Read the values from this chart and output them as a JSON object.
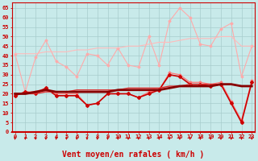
{
  "x": [
    0,
    1,
    2,
    3,
    4,
    5,
    6,
    7,
    8,
    9,
    10,
    11,
    12,
    13,
    14,
    15,
    16,
    17,
    18,
    19,
    20,
    21,
    22,
    23
  ],
  "series": [
    {
      "name": "line1_light_marker",
      "color": "#ffaaaa",
      "linewidth": 0.8,
      "marker": "D",
      "markersize": 1.5,
      "y": [
        41,
        21,
        39,
        48,
        37,
        34,
        29,
        41,
        40,
        35,
        44,
        35,
        34,
        50,
        35,
        58,
        65,
        60,
        46,
        45,
        54,
        57,
        29,
        45
      ]
    },
    {
      "name": "line2_light_trend",
      "color": "#ffbbbb",
      "linewidth": 0.8,
      "marker": null,
      "markersize": 0,
      "y": [
        41,
        41,
        41,
        42,
        42,
        42,
        43,
        43,
        44,
        44,
        44,
        45,
        45,
        46,
        47,
        47,
        48,
        49,
        49,
        49,
        50,
        50,
        45,
        45
      ]
    },
    {
      "name": "line3_medium_marker",
      "color": "#ff7777",
      "linewidth": 0.9,
      "marker": "D",
      "markersize": 1.5,
      "y": [
        19,
        21,
        21,
        23,
        20,
        20,
        20,
        14,
        15,
        20,
        20,
        20,
        18,
        21,
        22,
        31,
        30,
        26,
        26,
        25,
        26,
        16,
        6,
        27
      ]
    },
    {
      "name": "line4_medium_trend",
      "color": "#ffaaaa",
      "linewidth": 0.8,
      "marker": null,
      "markersize": 0,
      "y": [
        20,
        20,
        21,
        21,
        21,
        21,
        21,
        21,
        21,
        21,
        22,
        22,
        22,
        22,
        23,
        23,
        24,
        24,
        24,
        24,
        25,
        25,
        24,
        24
      ]
    },
    {
      "name": "line5_dark_marker",
      "color": "#cc0000",
      "linewidth": 1.2,
      "marker": "D",
      "markersize": 2.0,
      "y": [
        19,
        21,
        20,
        23,
        19,
        19,
        19,
        14,
        15,
        20,
        20,
        20,
        18,
        20,
        22,
        30,
        29,
        25,
        25,
        24,
        25,
        15,
        5,
        26
      ]
    },
    {
      "name": "line6_dark_trend",
      "color": "#dd3333",
      "linewidth": 1.0,
      "marker": null,
      "markersize": 0,
      "y": [
        20,
        20,
        20,
        21,
        21,
        21,
        22,
        22,
        22,
        22,
        22,
        23,
        23,
        23,
        23,
        24,
        24,
        25,
        25,
        25,
        25,
        25,
        24,
        24
      ]
    },
    {
      "name": "line7_bold",
      "color": "#880000",
      "linewidth": 2.0,
      "marker": null,
      "markersize": 0,
      "y": [
        20,
        20,
        21,
        22,
        21,
        21,
        21,
        21,
        21,
        21,
        22,
        22,
        22,
        22,
        22,
        23,
        24,
        24,
        24,
        24,
        25,
        25,
        24,
        24
      ]
    }
  ],
  "xlabel": "Vent moyen/en rafales ( km/h )",
  "ylabel_ticks": [
    0,
    5,
    10,
    15,
    20,
    25,
    30,
    35,
    40,
    45,
    50,
    55,
    60,
    65
  ],
  "xlim": [
    -0.3,
    23.3
  ],
  "ylim": [
    0,
    68
  ],
  "bg_color": "#c8eaea",
  "grid_color": "#a8cccc",
  "tick_color": "#cc0000",
  "label_color": "#cc0000",
  "arrow_color": "#cc0000",
  "xlabel_fontsize": 7,
  "ylabel_fontsize": 6
}
